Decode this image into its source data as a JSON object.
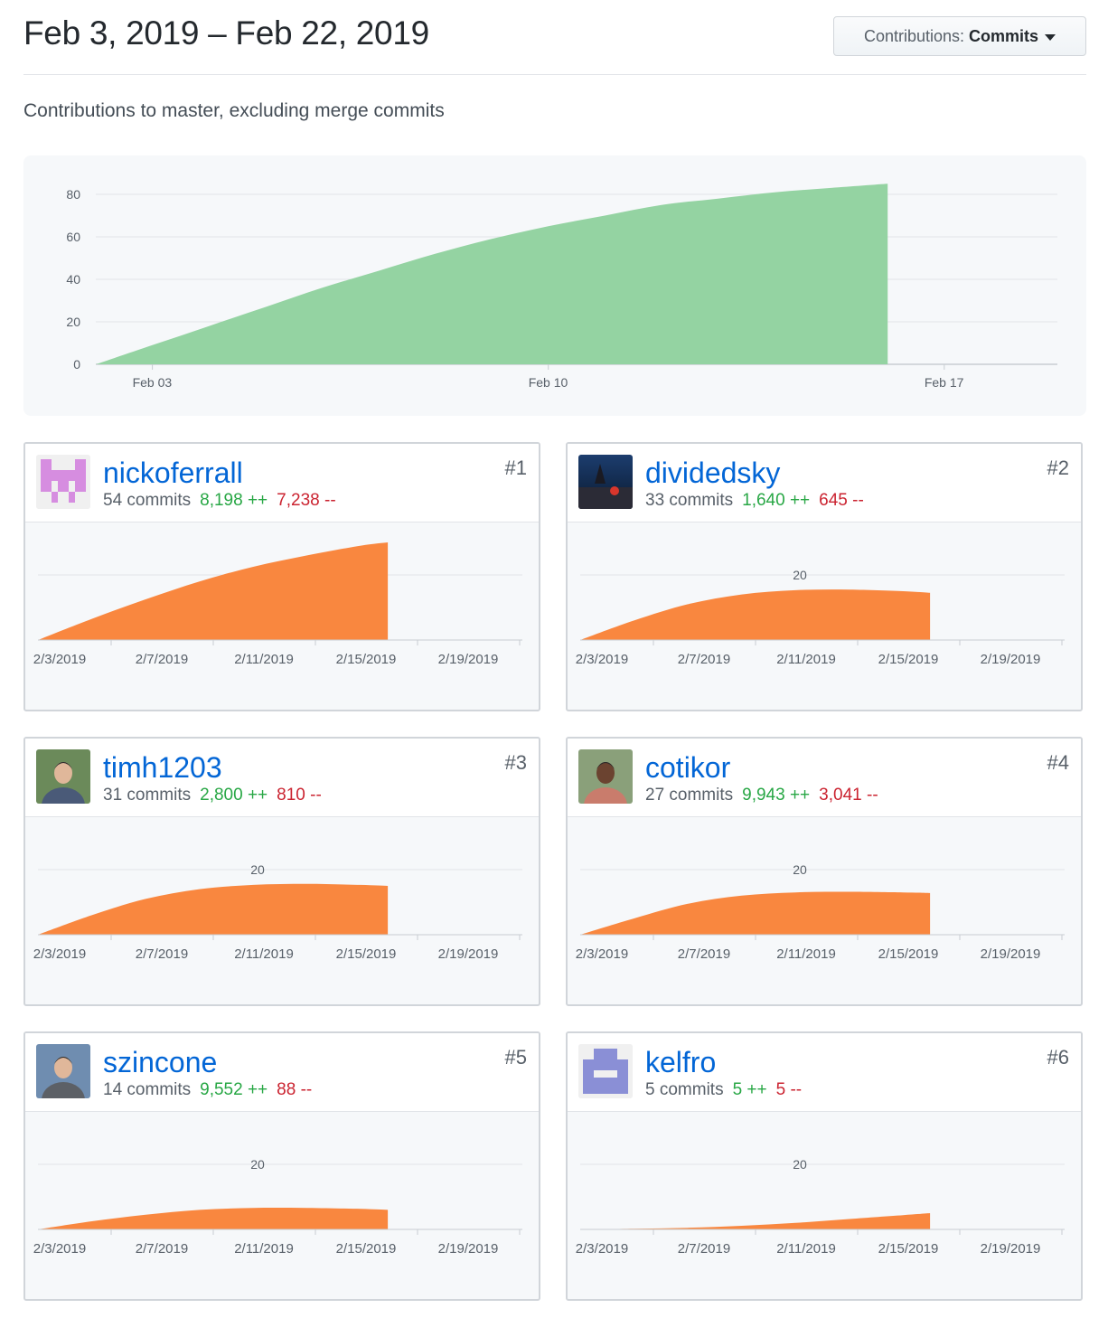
{
  "header": {
    "date_range": "Feb 3, 2019 – Feb 22, 2019",
    "contributions_label": "Contributions:",
    "contributions_value": "Commits"
  },
  "subtitle": "Contributions to master, excluding merge commits",
  "chart_data": [
    {
      "type": "area",
      "title": "",
      "x": [
        "2019-02-02",
        "2019-02-03",
        "2019-02-04",
        "2019-02-05",
        "2019-02-06",
        "2019-02-07",
        "2019-02-08",
        "2019-02-09",
        "2019-02-10",
        "2019-02-11",
        "2019-02-12",
        "2019-02-13",
        "2019-02-14",
        "2019-02-15",
        "2019-02-16"
      ],
      "y": [
        0,
        9,
        18,
        27,
        36,
        44,
        52,
        59,
        65,
        70,
        75,
        78,
        81,
        83,
        85
      ],
      "x_ticks": [
        "Feb 03",
        "Feb 10",
        "Feb 17"
      ],
      "y_ticks": [
        0,
        20,
        40,
        60,
        80
      ],
      "ylim": [
        0,
        85
      ],
      "grid": true,
      "color": "#94d3a2"
    },
    {
      "type": "area",
      "user": "nickoferrall",
      "x": [
        "2/3/2019",
        "2/5/2019",
        "2/7/2019",
        "2/9/2019",
        "2/11/2019",
        "2/13/2019",
        "2/15/2019",
        "2/16/2019"
      ],
      "y": [
        0,
        6.5,
        12.5,
        18,
        22.5,
        26,
        29,
        30
      ],
      "x_ticks": [
        "2/3/2019",
        "2/7/2019",
        "2/11/2019",
        "2/15/2019",
        "2/19/2019"
      ],
      "y_ticks": [],
      "ylim": [
        0,
        30
      ],
      "color": "#f9873f"
    },
    {
      "type": "area",
      "user": "dividedsky",
      "x": [
        "2/3/2019",
        "2/5/2019",
        "2/7/2019",
        "2/9/2019",
        "2/11/2019",
        "2/13/2019",
        "2/15/2019",
        "2/16/2019"
      ],
      "y": [
        0,
        6,
        11,
        14,
        15.3,
        15.5,
        15,
        14.5
      ],
      "x_ticks": [
        "2/3/2019",
        "2/7/2019",
        "2/11/2019",
        "2/15/2019",
        "2/19/2019"
      ],
      "y_ticks": [
        20
      ],
      "ylim": [
        0,
        30
      ],
      "color": "#f9873f"
    },
    {
      "type": "area",
      "user": "timh1203",
      "x": [
        "2/3/2019",
        "2/5/2019",
        "2/7/2019",
        "2/9/2019",
        "2/11/2019",
        "2/13/2019",
        "2/15/2019",
        "2/16/2019"
      ],
      "y": [
        0,
        6,
        11,
        14,
        15.3,
        15.6,
        15.3,
        15
      ],
      "x_ticks": [
        "2/3/2019",
        "2/7/2019",
        "2/11/2019",
        "2/15/2019",
        "2/19/2019"
      ],
      "y_ticks": [
        20
      ],
      "ylim": [
        0,
        30
      ],
      "color": "#f9873f"
    },
    {
      "type": "area",
      "user": "cotikor",
      "x": [
        "2/3/2019",
        "2/5/2019",
        "2/7/2019",
        "2/9/2019",
        "2/11/2019",
        "2/13/2019",
        "2/15/2019",
        "2/16/2019"
      ],
      "y": [
        0,
        5,
        9.5,
        12,
        13,
        13.2,
        13,
        12.8
      ],
      "x_ticks": [
        "2/3/2019",
        "2/7/2019",
        "2/11/2019",
        "2/15/2019",
        "2/19/2019"
      ],
      "y_ticks": [
        20
      ],
      "ylim": [
        0,
        30
      ],
      "color": "#f9873f"
    },
    {
      "type": "area",
      "user": "szincone",
      "x": [
        "2/3/2019",
        "2/5/2019",
        "2/7/2019",
        "2/9/2019",
        "2/11/2019",
        "2/13/2019",
        "2/15/2019",
        "2/16/2019"
      ],
      "y": [
        0,
        2.5,
        4.5,
        6,
        6.6,
        6.6,
        6.3,
        6
      ],
      "x_ticks": [
        "2/3/2019",
        "2/7/2019",
        "2/11/2019",
        "2/15/2019",
        "2/19/2019"
      ],
      "y_ticks": [
        20
      ],
      "ylim": [
        0,
        30
      ],
      "color": "#f9873f"
    },
    {
      "type": "area",
      "user": "kelfro",
      "x": [
        "2/3/2019",
        "2/5/2019",
        "2/7/2019",
        "2/9/2019",
        "2/11/2019",
        "2/13/2019",
        "2/15/2019",
        "2/16/2019"
      ],
      "y": [
        0,
        0.2,
        0.5,
        1.1,
        2,
        3.2,
        4.4,
        5
      ],
      "x_ticks": [
        "2/3/2019",
        "2/7/2019",
        "2/11/2019",
        "2/15/2019",
        "2/19/2019"
      ],
      "y_ticks": [
        20
      ],
      "ylim": [
        0,
        30
      ],
      "color": "#f9873f"
    }
  ],
  "contributors": [
    {
      "rank": "#1",
      "name": "nickoferrall",
      "commits": "54 commits",
      "additions": "8,198 ++",
      "deletions": "7,238 --",
      "avatar": "identicon-pink"
    },
    {
      "rank": "#2",
      "name": "dividedsky",
      "commits": "33 commits",
      "additions": "1,640 ++",
      "deletions": "645 --",
      "avatar": "photo-night-sky"
    },
    {
      "rank": "#3",
      "name": "timh1203",
      "commits": "31 commits",
      "additions": "2,800 ++",
      "deletions": "810 --",
      "avatar": "photo-person"
    },
    {
      "rank": "#4",
      "name": "cotikor",
      "commits": "27 commits",
      "additions": "9,943 ++",
      "deletions": "3,041 --",
      "avatar": "photo-person"
    },
    {
      "rank": "#5",
      "name": "szincone",
      "commits": "14 commits",
      "additions": "9,552 ++",
      "deletions": "88 --",
      "avatar": "photo-person"
    },
    {
      "rank": "#6",
      "name": "kelfro",
      "commits": "5 commits",
      "additions": "5 ++",
      "deletions": "5 --",
      "avatar": "identicon-purple"
    }
  ]
}
